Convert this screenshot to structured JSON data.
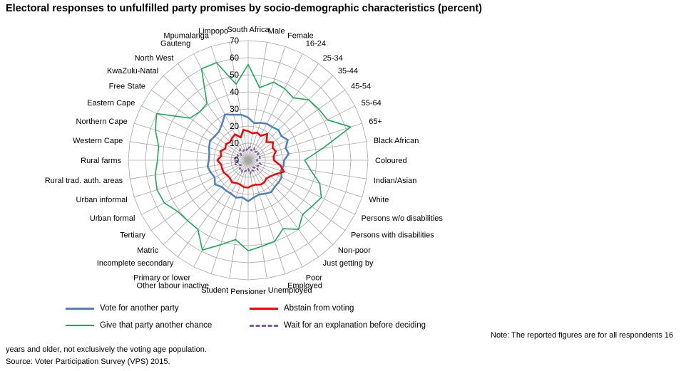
{
  "chart_data": {
    "type": "radar",
    "title": "Electoral responses to unfulfilled party promises by socio-demographic characteristics (percent)",
    "rlim": [
      0,
      70
    ],
    "ticks": [
      0,
      10,
      20,
      30,
      40,
      50,
      60,
      70
    ],
    "grid": true,
    "legend_position": "bottom",
    "categories": [
      "South Africa",
      "Male",
      "Female",
      "16-24",
      "25-34",
      "35-44",
      "45-54",
      "55-64",
      "65+",
      "Black African",
      "Coloured",
      "Indian/Asian",
      "White",
      "Persons w/o disabilities",
      "Persons with disabilities",
      "Non-poor",
      "Just getting by",
      "Poor",
      "Employed",
      "Unemployed",
      "Pensioner",
      "Student",
      "Other labour inactive",
      "Primary or lower",
      "Incomplete secondary",
      "Matric",
      "Tertiary",
      "Urban formal",
      "Urban informal",
      "Rural trad. auth. areas",
      "Rural farms",
      "Western Cape",
      "Northern Cape",
      "Eastern Cape",
      "Free State",
      "KwaZulu-Natal",
      "North West",
      "Gauteng",
      "Mpumalanga",
      "Limpopo"
    ],
    "series": [
      {
        "name": "Vote for another party",
        "color": "#4f81bd",
        "dash": "",
        "width": 2.5,
        "values": [
          25,
          22,
          23,
          24,
          24,
          25,
          24,
          26,
          23,
          24,
          21,
          21,
          20,
          22,
          22,
          22,
          23,
          22,
          21,
          22,
          24,
          22,
          23,
          22,
          22,
          22,
          24,
          22,
          23,
          24,
          23,
          23,
          24,
          25,
          24,
          24,
          26,
          30,
          28,
          27
        ]
      },
      {
        "name": "Abstain from voting",
        "color": "#ff0000",
        "dash": "",
        "width": 2.5,
        "values": [
          17,
          16,
          17,
          16,
          19,
          15,
          18,
          16,
          17,
          15,
          15,
          19,
          22,
          18,
          16,
          15,
          16,
          16,
          15,
          15,
          16,
          16,
          15,
          15,
          16,
          15,
          15,
          16,
          16,
          16,
          18,
          16,
          17,
          15,
          16,
          15,
          16,
          17,
          14,
          18
        ]
      },
      {
        "name": "Give that party another chance",
        "color": "#1aaa55",
        "dash": "",
        "width": 1.6,
        "values": [
          56,
          43,
          48,
          47,
          45,
          50,
          51,
          52,
          63,
          44,
          33,
          37,
          44,
          48,
          46,
          45,
          50,
          45,
          50,
          51,
          53,
          47,
          52,
          59,
          50,
          50,
          51,
          55,
          56,
          55,
          53,
          53,
          57,
          60,
          42,
          40,
          41,
          60,
          60,
          45
        ]
      },
      {
        "name": "Wait for an explanation before deciding",
        "color": "#7a5c9e",
        "dash": "4 3",
        "width": 2.2,
        "values": [
          7,
          8,
          6,
          8,
          6,
          7,
          8,
          6,
          7,
          7,
          5,
          6,
          8,
          7,
          6,
          8,
          5,
          7,
          6,
          8,
          5,
          6,
          7,
          8,
          6,
          7,
          5,
          6,
          8,
          6,
          7,
          8,
          6,
          7,
          5,
          7,
          8,
          6,
          7,
          6
        ]
      }
    ]
  },
  "legend": [
    {
      "label": "Vote for another party",
      "color": "#4f81bd",
      "style": "solid"
    },
    {
      "label": "Abstain from voting",
      "color": "#ff0000",
      "style": "solid"
    },
    {
      "label": "Give that party another chance",
      "color": "#1aaa55",
      "style": "solid"
    },
    {
      "label": "Wait for an explanation before deciding",
      "color": "#7a5c9e",
      "style": "dashed"
    }
  ],
  "notes": {
    "line1": "Note: The reported figures are for all respondents 16",
    "line2": "years and older, not exclusively the voting age population.",
    "source": "Source: Voter Participation Survey (VPS) 2015."
  }
}
